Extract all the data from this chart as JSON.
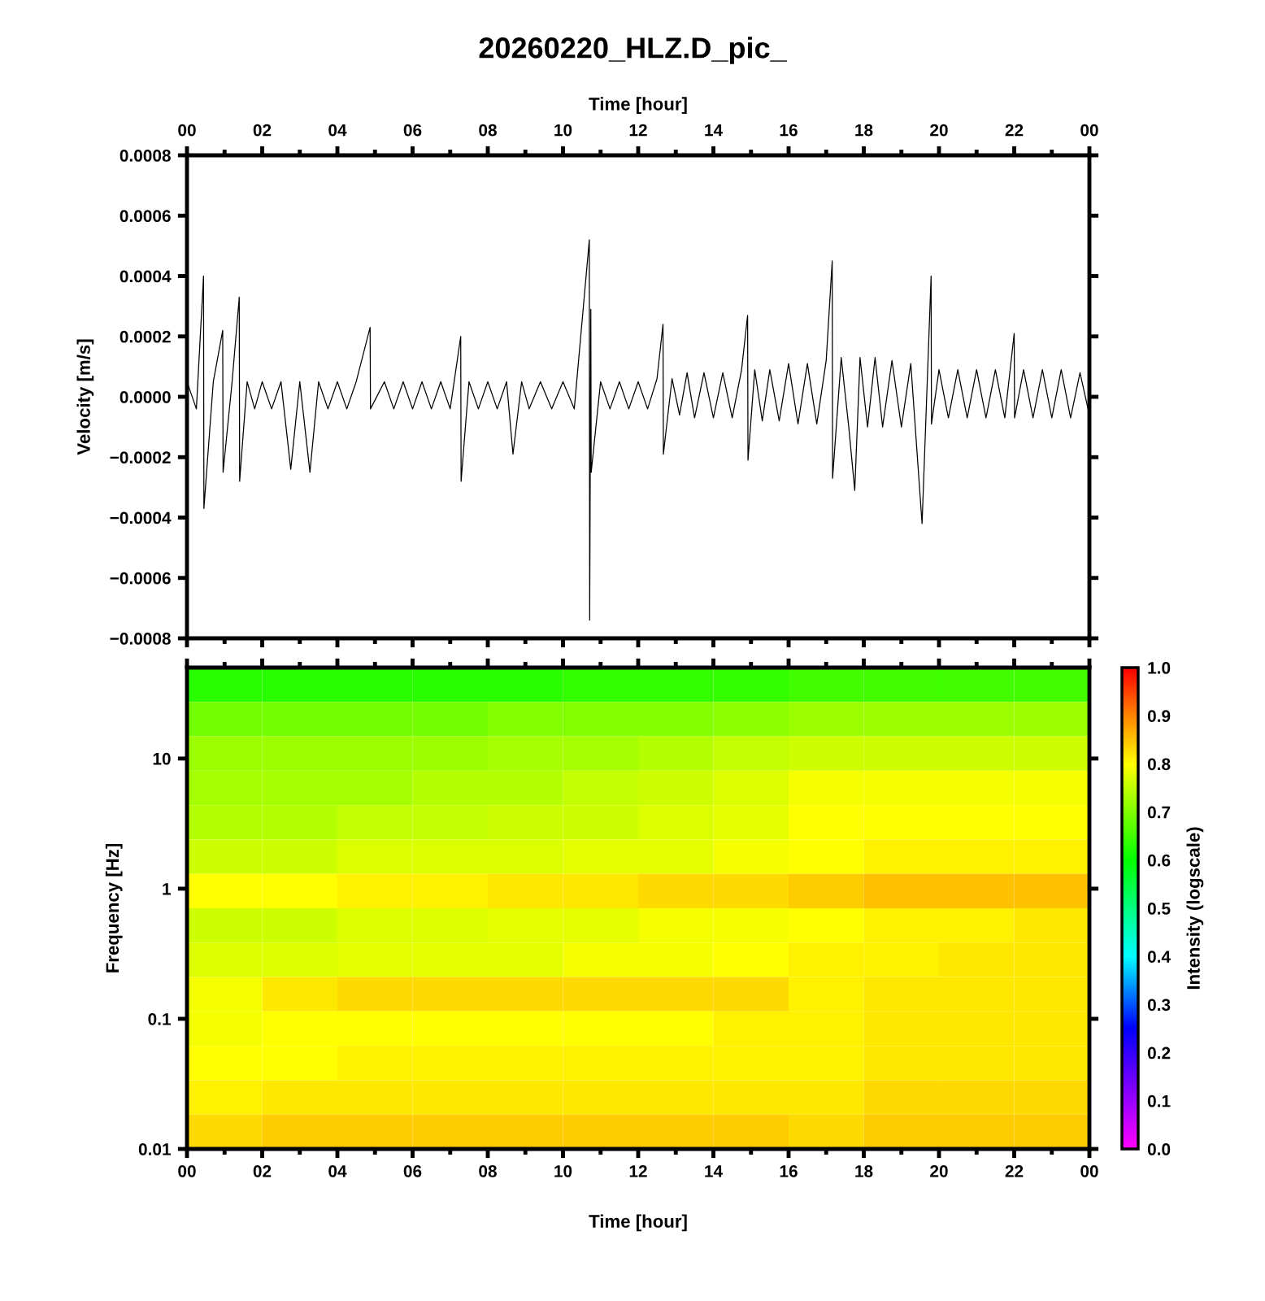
{
  "chart_data": [
    {
      "type": "line",
      "title": "20260220_HLZ.D_pic_",
      "xlabel": "Time [hour]",
      "ylabel": "Velocity [m/s]",
      "xlim": [
        0,
        24
      ],
      "xticks": [
        {
          "value": 0,
          "label": "00"
        },
        {
          "value": 1,
          "label": null
        },
        {
          "value": 2,
          "label": "02"
        },
        {
          "value": 3,
          "label": null
        },
        {
          "value": 4,
          "label": "04"
        },
        {
          "value": 5,
          "label": null
        },
        {
          "value": 6,
          "label": "06"
        },
        {
          "value": 7,
          "label": null
        },
        {
          "value": 8,
          "label": "08"
        },
        {
          "value": 9,
          "label": null
        },
        {
          "value": 10,
          "label": "10"
        },
        {
          "value": 11,
          "label": null
        },
        {
          "value": 12,
          "label": "12"
        },
        {
          "value": 13,
          "label": null
        },
        {
          "value": 14,
          "label": "14"
        },
        {
          "value": 15,
          "label": null
        },
        {
          "value": 16,
          "label": "16"
        },
        {
          "value": 17,
          "label": null
        },
        {
          "value": 18,
          "label": "18"
        },
        {
          "value": 19,
          "label": null
        },
        {
          "value": 20,
          "label": "20"
        },
        {
          "value": 21,
          "label": null
        },
        {
          "value": 22,
          "label": "22"
        },
        {
          "value": 23,
          "label": null
        },
        {
          "value": 24,
          "label": "00"
        }
      ],
      "ylim": [
        -0.0008,
        0.0008
      ],
      "yticks": [
        {
          "value": -0.0008,
          "label": "−0.0008"
        },
        {
          "value": -0.0006,
          "label": "−0.0006"
        },
        {
          "value": -0.0004,
          "label": "−0.0004"
        },
        {
          "value": -0.0002,
          "label": "−0.0002"
        },
        {
          "value": 0,
          "label": "0.0000"
        },
        {
          "value": 0.0002,
          "label": "0.0002"
        },
        {
          "value": 0.0004,
          "label": "0.0004"
        },
        {
          "value": 0.0006,
          "label": "0.0006"
        },
        {
          "value": 0.0008,
          "label": "0.0008"
        }
      ],
      "x": [
        0,
        0.25,
        0.44,
        0.45,
        0.7,
        0.95,
        0.96,
        1.2,
        1.39,
        1.4,
        1.6,
        1.8,
        2.0,
        2.25,
        2.5,
        2.76,
        3.0,
        3.27,
        3.5,
        3.75,
        4.0,
        4.25,
        4.5,
        4.87,
        4.88,
        5.25,
        5.5,
        5.75,
        6.0,
        6.25,
        6.5,
        6.75,
        7.0,
        7.28,
        7.29,
        7.5,
        7.75,
        8.0,
        8.25,
        8.5,
        8.67,
        8.9,
        9.1,
        9.4,
        9.7,
        10.0,
        10.3,
        10.7,
        10.71,
        10.74,
        10.75,
        11.0,
        11.25,
        11.5,
        11.75,
        12.0,
        12.25,
        12.5,
        12.66,
        12.67,
        12.9,
        13.1,
        13.3,
        13.5,
        13.75,
        14.0,
        14.25,
        14.5,
        14.75,
        14.91,
        14.92,
        15.1,
        15.3,
        15.5,
        15.75,
        16.0,
        16.25,
        16.5,
        16.75,
        17.0,
        17.16,
        17.17,
        17.4,
        17.6,
        17.76,
        17.9,
        18.1,
        18.3,
        18.5,
        18.75,
        19.0,
        19.25,
        19.55,
        19.79,
        19.8,
        20.0,
        20.25,
        20.5,
        20.75,
        21.0,
        21.25,
        21.5,
        21.75,
        22.0,
        22.01,
        22.25,
        22.5,
        22.75,
        23.0,
        23.25,
        23.5,
        23.75,
        24.0
      ],
      "series": [
        {
          "color": "#000000",
          "values": [
            5e-05,
            -4e-05,
            0.0004,
            -0.00037,
            5e-05,
            0.00022,
            -0.00025,
            5e-05,
            0.00033,
            -0.00028,
            5e-05,
            -4e-05,
            5e-05,
            -4e-05,
            5e-05,
            -0.00024,
            5e-05,
            -0.00025,
            5e-05,
            -4e-05,
            5e-05,
            -4e-05,
            5e-05,
            0.00023,
            -4e-05,
            5e-05,
            -4e-05,
            5e-05,
            -4e-05,
            5e-05,
            -4e-05,
            5e-05,
            -4e-05,
            0.0002,
            -0.00028,
            5e-05,
            -4e-05,
            5e-05,
            -4e-05,
            5e-05,
            -0.00019,
            5e-05,
            -4e-05,
            5e-05,
            -4e-05,
            5e-05,
            -4e-05,
            0.00052,
            -0.00074,
            0.00029,
            -0.00025,
            5e-05,
            -4e-05,
            5e-05,
            -4e-05,
            5e-05,
            -4e-05,
            6e-05,
            0.00024,
            -0.00019,
            6e-05,
            -6e-05,
            8e-05,
            -7e-05,
            8e-05,
            -7e-05,
            8e-05,
            -7e-05,
            9e-05,
            0.00027,
            -0.00021,
            9e-05,
            -8e-05,
            9e-05,
            -8e-05,
            0.00011,
            -9e-05,
            0.00011,
            -9e-05,
            0.00012,
            0.00045,
            -0.00027,
            0.00013,
            -0.0001,
            -0.00031,
            0.00013,
            -0.0001,
            0.00013,
            -0.0001,
            0.00012,
            -0.0001,
            0.00011,
            -0.00042,
            0.0004,
            -9e-05,
            9e-05,
            -7e-05,
            9e-05,
            -7e-05,
            9e-05,
            -7e-05,
            9e-05,
            -7e-05,
            0.00021,
            -7e-05,
            9e-05,
            -7e-05,
            9e-05,
            -7e-05,
            9e-05,
            -7e-05,
            8e-05,
            -6e-05
          ]
        }
      ]
    },
    {
      "type": "heatmap",
      "xlabel": "Time [hour]",
      "ylabel": "Frequency [Hz]",
      "clabel": "Intensity (logscale)",
      "log": "y",
      "x": [
        1,
        3,
        5,
        7,
        9,
        11,
        13,
        15,
        17,
        19,
        21,
        23
      ],
      "xlim": [
        0,
        24
      ],
      "xticks": [
        {
          "value": 0,
          "label": "00"
        },
        {
          "value": 1,
          "label": null
        },
        {
          "value": 2,
          "label": "02"
        },
        {
          "value": 3,
          "label": null
        },
        {
          "value": 4,
          "label": "04"
        },
        {
          "value": 5,
          "label": null
        },
        {
          "value": 6,
          "label": "06"
        },
        {
          "value": 7,
          "label": null
        },
        {
          "value": 8,
          "label": "08"
        },
        {
          "value": 9,
          "label": null
        },
        {
          "value": 10,
          "label": "10"
        },
        {
          "value": 11,
          "label": null
        },
        {
          "value": 12,
          "label": "12"
        },
        {
          "value": 13,
          "label": null
        },
        {
          "value": 14,
          "label": "14"
        },
        {
          "value": 15,
          "label": null
        },
        {
          "value": 16,
          "label": "16"
        },
        {
          "value": 17,
          "label": null
        },
        {
          "value": 18,
          "label": "18"
        },
        {
          "value": 19,
          "label": null
        },
        {
          "value": 20,
          "label": "20"
        },
        {
          "value": 21,
          "label": null
        },
        {
          "value": 22,
          "label": "22"
        },
        {
          "value": 23,
          "label": null
        },
        {
          "value": 24,
          "label": "00"
        }
      ],
      "ylim": [
        0.01,
        50
      ],
      "yticks": [
        0.01,
        0.1,
        1,
        10
      ],
      "clim": [
        0,
        1
      ],
      "cticks": [
        {
          "value": 0,
          "label": "0.0"
        },
        {
          "value": 0.1,
          "label": "0.1"
        },
        {
          "value": 0.2,
          "label": "0.2"
        },
        {
          "value": 0.3,
          "label": "0.3"
        },
        {
          "value": 0.4,
          "label": "0.4"
        },
        {
          "value": 0.5,
          "label": "0.5"
        },
        {
          "value": 0.6,
          "label": "0.6"
        },
        {
          "value": 0.7,
          "label": "0.7"
        },
        {
          "value": 0.8,
          "label": "0.8"
        },
        {
          "value": 0.9,
          "label": "0.9"
        },
        {
          "value": 1,
          "label": "1.0"
        }
      ],
      "cells": [
        [
          0.63,
          0.63,
          0.63,
          0.63,
          0.63,
          0.64,
          0.64,
          0.64,
          0.65,
          0.65,
          0.65,
          0.65
        ],
        [
          0.69,
          0.69,
          0.69,
          0.69,
          0.7,
          0.7,
          0.7,
          0.71,
          0.72,
          0.72,
          0.72,
          0.72
        ],
        [
          0.72,
          0.72,
          0.72,
          0.72,
          0.73,
          0.73,
          0.74,
          0.75,
          0.76,
          0.76,
          0.76,
          0.76
        ],
        [
          0.73,
          0.73,
          0.73,
          0.74,
          0.74,
          0.75,
          0.76,
          0.77,
          0.79,
          0.79,
          0.79,
          0.79
        ],
        [
          0.74,
          0.74,
          0.75,
          0.75,
          0.76,
          0.76,
          0.77,
          0.78,
          0.8,
          0.8,
          0.8,
          0.8
        ],
        [
          0.76,
          0.76,
          0.77,
          0.77,
          0.77,
          0.78,
          0.78,
          0.79,
          0.8,
          0.81,
          0.81,
          0.81
        ],
        [
          0.8,
          0.8,
          0.81,
          0.81,
          0.82,
          0.82,
          0.83,
          0.83,
          0.84,
          0.85,
          0.85,
          0.85
        ],
        [
          0.76,
          0.76,
          0.77,
          0.77,
          0.78,
          0.78,
          0.79,
          0.79,
          0.8,
          0.81,
          0.81,
          0.82
        ],
        [
          0.77,
          0.77,
          0.78,
          0.78,
          0.78,
          0.79,
          0.79,
          0.8,
          0.81,
          0.81,
          0.82,
          0.82
        ],
        [
          0.79,
          0.82,
          0.83,
          0.83,
          0.83,
          0.83,
          0.83,
          0.83,
          0.81,
          0.82,
          0.82,
          0.82
        ],
        [
          0.79,
          0.8,
          0.8,
          0.8,
          0.8,
          0.8,
          0.8,
          0.81,
          0.81,
          0.82,
          0.82,
          0.82
        ],
        [
          0.8,
          0.8,
          0.81,
          0.81,
          0.81,
          0.81,
          0.81,
          0.81,
          0.81,
          0.82,
          0.82,
          0.82
        ],
        [
          0.81,
          0.82,
          0.82,
          0.82,
          0.82,
          0.82,
          0.82,
          0.82,
          0.82,
          0.83,
          0.83,
          0.83
        ],
        [
          0.83,
          0.84,
          0.84,
          0.84,
          0.84,
          0.84,
          0.84,
          0.84,
          0.83,
          0.84,
          0.84,
          0.84
        ]
      ]
    }
  ]
}
